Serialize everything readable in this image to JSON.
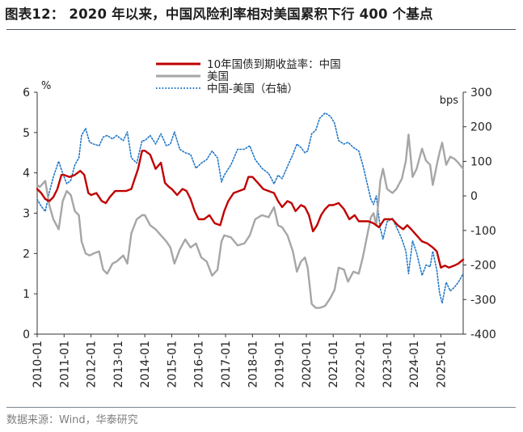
{
  "title": "图表12： 2020 年以来，中国风险利率相对美国累积下行 400 个基点",
  "source": "数据来源：Wind，华泰研究",
  "chart_data": {
    "type": "line",
    "left_axis": {
      "unit": "%",
      "ylim": [
        0,
        6
      ],
      "ticks": [
        "0",
        "1",
        "2",
        "3",
        "4",
        "5",
        "6"
      ]
    },
    "right_axis": {
      "unit": "bps",
      "ylim": [
        -400,
        300
      ],
      "ticks": [
        "-400",
        "-300",
        "-200",
        "-100",
        "0",
        "100",
        "200",
        "300"
      ]
    },
    "xlim": [
      2010.0,
      2025.83
    ],
    "x_ticks": [
      "2010-01",
      "2011-01",
      "2012-01",
      "2013-01",
      "2014-01",
      "2015-01",
      "2016-01",
      "2017-01",
      "2018-01",
      "2019-01",
      "2020-01",
      "2021-01",
      "2022-01",
      "2023-01",
      "2024-01",
      "2025-01"
    ],
    "legend": [
      "10年国债到期收益率：中国",
      "美国",
      "中国-美国（右轴）"
    ],
    "colors": {
      "china": "#c00000",
      "us": "#a6a6a6",
      "spread": "#1f77c8"
    },
    "series": [
      {
        "name": "10年国债到期收益率：中国",
        "axis": "left",
        "points": [
          [
            2010.0,
            3.6
          ],
          [
            2010.15,
            3.5
          ],
          [
            2010.3,
            3.35
          ],
          [
            2010.45,
            3.3
          ],
          [
            2010.6,
            3.4
          ],
          [
            2010.75,
            3.6
          ],
          [
            2010.9,
            3.95
          ],
          [
            2011.0,
            3.95
          ],
          [
            2011.2,
            3.9
          ],
          [
            2011.4,
            3.95
          ],
          [
            2011.6,
            4.05
          ],
          [
            2011.75,
            3.95
          ],
          [
            2011.9,
            3.5
          ],
          [
            2012.0,
            3.45
          ],
          [
            2012.2,
            3.5
          ],
          [
            2012.4,
            3.3
          ],
          [
            2012.55,
            3.25
          ],
          [
            2012.7,
            3.4
          ],
          [
            2012.9,
            3.55
          ],
          [
            2013.0,
            3.55
          ],
          [
            2013.3,
            3.55
          ],
          [
            2013.5,
            3.6
          ],
          [
            2013.6,
            3.8
          ],
          [
            2013.75,
            4.1
          ],
          [
            2013.9,
            4.55
          ],
          [
            2014.0,
            4.55
          ],
          [
            2014.2,
            4.45
          ],
          [
            2014.4,
            4.1
          ],
          [
            2014.6,
            4.25
          ],
          [
            2014.75,
            3.75
          ],
          [
            2014.9,
            3.65
          ],
          [
            2015.0,
            3.6
          ],
          [
            2015.2,
            3.45
          ],
          [
            2015.4,
            3.6
          ],
          [
            2015.55,
            3.55
          ],
          [
            2015.7,
            3.35
          ],
          [
            2015.85,
            3.05
          ],
          [
            2016.0,
            2.85
          ],
          [
            2016.2,
            2.85
          ],
          [
            2016.4,
            2.95
          ],
          [
            2016.6,
            2.75
          ],
          [
            2016.8,
            2.7
          ],
          [
            2016.95,
            3.05
          ],
          [
            2017.1,
            3.3
          ],
          [
            2017.3,
            3.5
          ],
          [
            2017.5,
            3.55
          ],
          [
            2017.7,
            3.6
          ],
          [
            2017.85,
            3.9
          ],
          [
            2018.0,
            3.9
          ],
          [
            2018.2,
            3.75
          ],
          [
            2018.4,
            3.6
          ],
          [
            2018.6,
            3.55
          ],
          [
            2018.8,
            3.5
          ],
          [
            2018.95,
            3.3
          ],
          [
            2019.1,
            3.15
          ],
          [
            2019.3,
            3.3
          ],
          [
            2019.45,
            3.25
          ],
          [
            2019.6,
            3.05
          ],
          [
            2019.8,
            3.2
          ],
          [
            2019.95,
            3.15
          ],
          [
            2020.1,
            2.95
          ],
          [
            2020.25,
            2.55
          ],
          [
            2020.4,
            2.7
          ],
          [
            2020.55,
            2.95
          ],
          [
            2020.7,
            3.1
          ],
          [
            2020.85,
            3.2
          ],
          [
            2021.0,
            3.2
          ],
          [
            2021.2,
            3.25
          ],
          [
            2021.4,
            3.1
          ],
          [
            2021.6,
            2.85
          ],
          [
            2021.8,
            2.95
          ],
          [
            2021.95,
            2.8
          ],
          [
            2022.1,
            2.8
          ],
          [
            2022.3,
            2.8
          ],
          [
            2022.5,
            2.75
          ],
          [
            2022.7,
            2.65
          ],
          [
            2022.9,
            2.85
          ],
          [
            2023.0,
            2.85
          ],
          [
            2023.2,
            2.85
          ],
          [
            2023.4,
            2.7
          ],
          [
            2023.6,
            2.6
          ],
          [
            2023.75,
            2.7
          ],
          [
            2023.9,
            2.6
          ],
          [
            2024.1,
            2.45
          ],
          [
            2024.3,
            2.3
          ],
          [
            2024.5,
            2.25
          ],
          [
            2024.7,
            2.15
          ],
          [
            2024.85,
            2.05
          ],
          [
            2025.0,
            1.65
          ],
          [
            2025.15,
            1.7
          ],
          [
            2025.3,
            1.65
          ],
          [
            2025.5,
            1.7
          ],
          [
            2025.65,
            1.75
          ],
          [
            2025.83,
            1.85
          ]
        ]
      },
      {
        "name": "美国",
        "axis": "left",
        "points": [
          [
            2010.0,
            3.7
          ],
          [
            2010.1,
            3.65
          ],
          [
            2010.3,
            3.8
          ],
          [
            2010.45,
            3.2
          ],
          [
            2010.6,
            2.85
          ],
          [
            2010.8,
            2.6
          ],
          [
            2010.95,
            3.3
          ],
          [
            2011.1,
            3.55
          ],
          [
            2011.25,
            3.45
          ],
          [
            2011.4,
            3.05
          ],
          [
            2011.55,
            2.95
          ],
          [
            2011.65,
            2.3
          ],
          [
            2011.8,
            2.0
          ],
          [
            2011.95,
            1.95
          ],
          [
            2012.1,
            2.0
          ],
          [
            2012.3,
            2.05
          ],
          [
            2012.45,
            1.6
          ],
          [
            2012.6,
            1.5
          ],
          [
            2012.8,
            1.75
          ],
          [
            2012.95,
            1.8
          ],
          [
            2013.2,
            1.95
          ],
          [
            2013.35,
            1.75
          ],
          [
            2013.5,
            2.5
          ],
          [
            2013.7,
            2.85
          ],
          [
            2013.9,
            2.95
          ],
          [
            2014.0,
            2.95
          ],
          [
            2014.2,
            2.7
          ],
          [
            2014.4,
            2.6
          ],
          [
            2014.6,
            2.45
          ],
          [
            2014.8,
            2.3
          ],
          [
            2014.95,
            2.15
          ],
          [
            2015.1,
            1.75
          ],
          [
            2015.3,
            2.1
          ],
          [
            2015.5,
            2.35
          ],
          [
            2015.7,
            2.15
          ],
          [
            2015.9,
            2.25
          ],
          [
            2016.1,
            1.9
          ],
          [
            2016.3,
            1.8
          ],
          [
            2016.5,
            1.45
          ],
          [
            2016.7,
            1.6
          ],
          [
            2016.85,
            2.3
          ],
          [
            2016.95,
            2.45
          ],
          [
            2017.2,
            2.4
          ],
          [
            2017.45,
            2.2
          ],
          [
            2017.7,
            2.25
          ],
          [
            2017.9,
            2.45
          ],
          [
            2018.1,
            2.85
          ],
          [
            2018.35,
            2.95
          ],
          [
            2018.6,
            2.9
          ],
          [
            2018.8,
            3.15
          ],
          [
            2018.95,
            2.7
          ],
          [
            2019.1,
            2.65
          ],
          [
            2019.3,
            2.45
          ],
          [
            2019.5,
            2.05
          ],
          [
            2019.65,
            1.55
          ],
          [
            2019.8,
            1.8
          ],
          [
            2019.95,
            1.9
          ],
          [
            2020.05,
            1.65
          ],
          [
            2020.2,
            0.75
          ],
          [
            2020.35,
            0.65
          ],
          [
            2020.5,
            0.65
          ],
          [
            2020.7,
            0.7
          ],
          [
            2020.9,
            0.9
          ],
          [
            2021.05,
            1.1
          ],
          [
            2021.2,
            1.65
          ],
          [
            2021.4,
            1.6
          ],
          [
            2021.55,
            1.3
          ],
          [
            2021.75,
            1.55
          ],
          [
            2021.95,
            1.5
          ],
          [
            2022.1,
            1.9
          ],
          [
            2022.25,
            2.4
          ],
          [
            2022.4,
            2.9
          ],
          [
            2022.5,
            3.0
          ],
          [
            2022.6,
            2.7
          ],
          [
            2022.75,
            3.8
          ],
          [
            2022.85,
            4.1
          ],
          [
            2023.0,
            3.6
          ],
          [
            2023.2,
            3.5
          ],
          [
            2023.35,
            3.6
          ],
          [
            2023.55,
            3.85
          ],
          [
            2023.7,
            4.3
          ],
          [
            2023.8,
            4.95
          ],
          [
            2023.95,
            3.9
          ],
          [
            2024.1,
            4.1
          ],
          [
            2024.3,
            4.6
          ],
          [
            2024.45,
            4.3
          ],
          [
            2024.6,
            4.2
          ],
          [
            2024.7,
            3.7
          ],
          [
            2024.85,
            4.2
          ],
          [
            2024.95,
            4.5
          ],
          [
            2025.05,
            4.75
          ],
          [
            2025.2,
            4.2
          ],
          [
            2025.35,
            4.4
          ],
          [
            2025.5,
            4.35
          ],
          [
            2025.65,
            4.25
          ],
          [
            2025.83,
            4.1
          ]
        ]
      },
      {
        "name": "中国-美国（右轴）",
        "axis": "right",
        "points": [
          [
            2010.0,
            -10
          ],
          [
            2010.15,
            -30
          ],
          [
            2010.3,
            -45
          ],
          [
            2010.45,
            10
          ],
          [
            2010.6,
            55
          ],
          [
            2010.8,
            100
          ],
          [
            2010.95,
            65
          ],
          [
            2011.1,
            35
          ],
          [
            2011.25,
            45
          ],
          [
            2011.4,
            90
          ],
          [
            2011.55,
            110
          ],
          [
            2011.65,
            175
          ],
          [
            2011.8,
            195
          ],
          [
            2011.95,
            155
          ],
          [
            2012.1,
            150
          ],
          [
            2012.3,
            145
          ],
          [
            2012.45,
            170
          ],
          [
            2012.6,
            175
          ],
          [
            2012.8,
            165
          ],
          [
            2012.95,
            175
          ],
          [
            2013.2,
            160
          ],
          [
            2013.35,
            185
          ],
          [
            2013.5,
            110
          ],
          [
            2013.7,
            95
          ],
          [
            2013.9,
            160
          ],
          [
            2014.0,
            160
          ],
          [
            2014.2,
            175
          ],
          [
            2014.4,
            150
          ],
          [
            2014.6,
            180
          ],
          [
            2014.8,
            145
          ],
          [
            2014.95,
            150
          ],
          [
            2015.1,
            185
          ],
          [
            2015.3,
            135
          ],
          [
            2015.5,
            125
          ],
          [
            2015.7,
            120
          ],
          [
            2015.9,
            80
          ],
          [
            2016.1,
            95
          ],
          [
            2016.3,
            105
          ],
          [
            2016.5,
            130
          ],
          [
            2016.7,
            110
          ],
          [
            2016.85,
            40
          ],
          [
            2016.95,
            60
          ],
          [
            2017.2,
            90
          ],
          [
            2017.45,
            135
          ],
          [
            2017.7,
            135
          ],
          [
            2017.9,
            145
          ],
          [
            2018.1,
            105
          ],
          [
            2018.35,
            80
          ],
          [
            2018.6,
            65
          ],
          [
            2018.8,
            35
          ],
          [
            2018.95,
            60
          ],
          [
            2019.1,
            50
          ],
          [
            2019.3,
            85
          ],
          [
            2019.5,
            120
          ],
          [
            2019.65,
            150
          ],
          [
            2019.8,
            140
          ],
          [
            2019.95,
            125
          ],
          [
            2020.05,
            130
          ],
          [
            2020.2,
            180
          ],
          [
            2020.35,
            190
          ],
          [
            2020.5,
            225
          ],
          [
            2020.7,
            240
          ],
          [
            2020.9,
            230
          ],
          [
            2021.05,
            210
          ],
          [
            2021.2,
            160
          ],
          [
            2021.4,
            150
          ],
          [
            2021.55,
            155
          ],
          [
            2021.75,
            140
          ],
          [
            2021.95,
            130
          ],
          [
            2022.1,
            90
          ],
          [
            2022.25,
            40
          ],
          [
            2022.4,
            -10
          ],
          [
            2022.5,
            -25
          ],
          [
            2022.6,
            0
          ],
          [
            2022.75,
            -95
          ],
          [
            2022.85,
            -125
          ],
          [
            2023.0,
            -75
          ],
          [
            2023.2,
            -65
          ],
          [
            2023.35,
            -90
          ],
          [
            2023.55,
            -125
          ],
          [
            2023.7,
            -160
          ],
          [
            2023.8,
            -225
          ],
          [
            2023.95,
            -130
          ],
          [
            2024.1,
            -165
          ],
          [
            2024.3,
            -230
          ],
          [
            2024.45,
            -200
          ],
          [
            2024.6,
            -205
          ],
          [
            2024.7,
            -160
          ],
          [
            2024.85,
            -215
          ],
          [
            2024.95,
            -280
          ],
          [
            2025.05,
            -310
          ],
          [
            2025.2,
            -250
          ],
          [
            2025.35,
            -275
          ],
          [
            2025.5,
            -265
          ],
          [
            2025.65,
            -250
          ],
          [
            2025.83,
            -225
          ]
        ]
      }
    ]
  }
}
